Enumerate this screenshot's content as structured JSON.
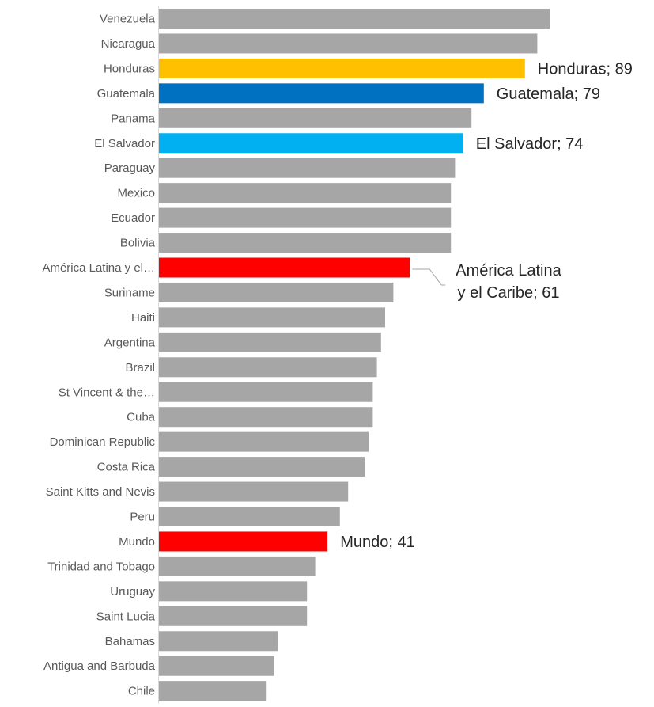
{
  "chart_data": {
    "type": "bar",
    "orientation": "horizontal",
    "title": "",
    "xlabel": "",
    "ylabel": "",
    "xlim": [
      0,
      100
    ],
    "grid": false,
    "legend": "none",
    "default_color": "#a6a6a6",
    "categories": [
      "Venezuela",
      "Nicaragua",
      "Honduras",
      "Guatemala",
      "Panama",
      "El Salvador",
      "Paraguay",
      "Mexico",
      "Ecuador",
      "Bolivia",
      "América Latina y el…",
      "Suriname",
      "Haiti",
      "Argentina",
      "Brazil",
      "St Vincent & the…",
      "Cuba",
      "Dominican Republic",
      "Costa Rica",
      "Saint Kitts and Nevis",
      "Peru",
      "Mundo",
      "Trinidad and Tobago",
      "Uruguay",
      "Saint Lucia",
      "Bahamas",
      "Antigua and Barbuda",
      "Chile"
    ],
    "values": [
      95,
      92,
      89,
      79,
      76,
      74,
      72,
      71,
      71,
      71,
      61,
      57,
      55,
      54,
      53,
      52,
      52,
      51,
      50,
      46,
      44,
      41,
      38,
      36,
      36,
      29,
      28,
      26
    ],
    "highlights": [
      {
        "index": 2,
        "color": "#ffc000",
        "label": "Honduras; 89"
      },
      {
        "index": 3,
        "color": "#0070c0",
        "label": "Guatemala; 79"
      },
      {
        "index": 5,
        "color": "#00b0f0",
        "label": "El Salvador; 74"
      },
      {
        "index": 10,
        "color": "#ff0000",
        "label_lines": [
          "América Latina",
          "y el Caribe; 61"
        ]
      },
      {
        "index": 21,
        "color": "#ff0000",
        "label": "Mundo; 41"
      }
    ]
  }
}
